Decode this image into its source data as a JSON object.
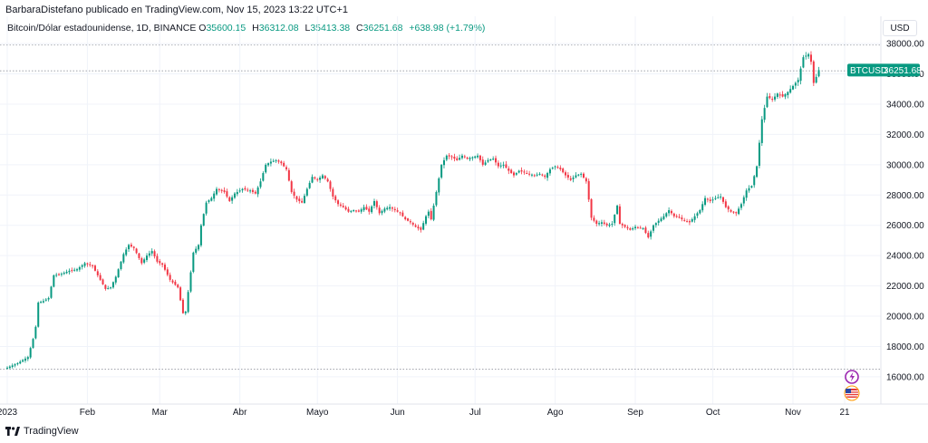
{
  "caption": "BarbaraDistefano publicado en TradingView.com, Nov 15, 2023 13:22 UTC+1",
  "legend": {
    "symbol": "Bitcoin/Dólar estadounidense, 1D, BINANCE",
    "open_label": "O",
    "open": "35600.15",
    "high_label": "H",
    "high": "36312.08",
    "low_label": "L",
    "low": "35413.38",
    "close_label": "C",
    "close": "36251.68",
    "change": "+638.98 (+1.79%)"
  },
  "currency": "USD",
  "price_tag": {
    "label": "BTCUSD",
    "value": "36251.68"
  },
  "footer": {
    "brand": "TradingView"
  },
  "colors": {
    "up": "#089981",
    "down": "#f23645",
    "grid": "#f0f3fa",
    "tag": "#089981"
  },
  "icons": [
    "tradingview-logo-icon",
    "lightning-event-icon",
    "us-flag-event-icon"
  ],
  "chart_data": {
    "type": "candlestick",
    "y_ticks": [
      16000,
      18000,
      20000,
      22000,
      24000,
      26000,
      28000,
      30000,
      32000,
      34000,
      36000,
      38000
    ],
    "y_tick_labels": [
      "16000.00",
      "18000.00",
      "20000.00",
      "22000.00",
      "24000.00",
      "26000.00",
      "28000.00",
      "30000.00",
      "32000.00",
      "34000.00",
      "36000.00",
      "38000.00"
    ],
    "ylim": [
      14200,
      39800
    ],
    "x_tick_labels": [
      "2023",
      "Feb",
      "Mar",
      "Abr",
      "Mayo",
      "Jun",
      "Jul",
      "Ago",
      "Sep",
      "Oct",
      "Nov",
      "21"
    ],
    "x_tick_days": [
      0,
      31,
      59,
      90,
      120,
      151,
      181,
      212,
      243,
      273,
      304,
      324
    ],
    "horizontal_levels": [
      16500,
      37900,
      36200
    ],
    "close_anchors": [
      [
        0,
        16600
      ],
      [
        4,
        16900
      ],
      [
        8,
        17300
      ],
      [
        10,
        18500
      ],
      [
        11,
        19300
      ],
      [
        12,
        20900
      ],
      [
        14,
        21000
      ],
      [
        16,
        21200
      ],
      [
        18,
        22700
      ],
      [
        21,
        22800
      ],
      [
        24,
        23000
      ],
      [
        27,
        23100
      ],
      [
        30,
        23500
      ],
      [
        33,
        23300
      ],
      [
        36,
        22400
      ],
      [
        38,
        21800
      ],
      [
        40,
        21900
      ],
      [
        42,
        22600
      ],
      [
        45,
        24100
      ],
      [
        47,
        24700
      ],
      [
        49,
        24500
      ],
      [
        52,
        23500
      ],
      [
        54,
        24000
      ],
      [
        56,
        24300
      ],
      [
        58,
        23600
      ],
      [
        60,
        23400
      ],
      [
        63,
        22400
      ],
      [
        66,
        21900
      ],
      [
        68,
        20200
      ],
      [
        69,
        20300
      ],
      [
        70,
        21600
      ],
      [
        72,
        24200
      ],
      [
        74,
        24700
      ],
      [
        75,
        26000
      ],
      [
        77,
        27500
      ],
      [
        79,
        27800
      ],
      [
        81,
        28400
      ],
      [
        84,
        28200
      ],
      [
        86,
        27600
      ],
      [
        88,
        28100
      ],
      [
        91,
        28400
      ],
      [
        94,
        28300
      ],
      [
        96,
        28100
      ],
      [
        98,
        28900
      ],
      [
        100,
        30000
      ],
      [
        102,
        30200
      ],
      [
        104,
        30300
      ],
      [
        106,
        30100
      ],
      [
        108,
        29700
      ],
      [
        110,
        28200
      ],
      [
        112,
        27700
      ],
      [
        114,
        27500
      ],
      [
        116,
        28400
      ],
      [
        118,
        29200
      ],
      [
        120,
        29000
      ],
      [
        122,
        29300
      ],
      [
        124,
        28900
      ],
      [
        126,
        27900
      ],
      [
        128,
        27400
      ],
      [
        130,
        27200
      ],
      [
        132,
        26900
      ],
      [
        134,
        27000
      ],
      [
        136,
        26900
      ],
      [
        138,
        27200
      ],
      [
        140,
        26900
      ],
      [
        142,
        27600
      ],
      [
        144,
        26800
      ],
      [
        146,
        27100
      ],
      [
        148,
        27200
      ],
      [
        150,
        27000
      ],
      [
        152,
        26800
      ],
      [
        154,
        26400
      ],
      [
        156,
        26200
      ],
      [
        158,
        25900
      ],
      [
        160,
        25700
      ],
      [
        162,
        26600
      ],
      [
        163,
        26900
      ],
      [
        164,
        26400
      ],
      [
        166,
        28200
      ],
      [
        168,
        30000
      ],
      [
        170,
        30600
      ],
      [
        172,
        30500
      ],
      [
        174,
        30300
      ],
      [
        176,
        30600
      ],
      [
        178,
        30400
      ],
      [
        180,
        30500
      ],
      [
        182,
        30600
      ],
      [
        184,
        30000
      ],
      [
        186,
        30300
      ],
      [
        188,
        30400
      ],
      [
        190,
        29900
      ],
      [
        192,
        30000
      ],
      [
        194,
        29600
      ],
      [
        196,
        29300
      ],
      [
        198,
        29600
      ],
      [
        200,
        29500
      ],
      [
        202,
        29400
      ],
      [
        204,
        29300
      ],
      [
        206,
        29400
      ],
      [
        208,
        29200
      ],
      [
        210,
        29700
      ],
      [
        212,
        29900
      ],
      [
        214,
        29700
      ],
      [
        216,
        29300
      ],
      [
        218,
        29000
      ],
      [
        220,
        29300
      ],
      [
        222,
        29400
      ],
      [
        224,
        28900
      ],
      [
        226,
        26500
      ],
      [
        228,
        26100
      ],
      [
        230,
        26200
      ],
      [
        232,
        26000
      ],
      [
        234,
        26100
      ],
      [
        236,
        27300
      ],
      [
        237,
        26100
      ],
      [
        239,
        25900
      ],
      [
        241,
        25700
      ],
      [
        243,
        25900
      ],
      [
        246,
        25800
      ],
      [
        248,
        25200
      ],
      [
        250,
        26000
      ],
      [
        252,
        26300
      ],
      [
        254,
        26600
      ],
      [
        256,
        27000
      ],
      [
        258,
        26600
      ],
      [
        260,
        26500
      ],
      [
        262,
        26300
      ],
      [
        264,
        26200
      ],
      [
        266,
        26600
      ],
      [
        268,
        27000
      ],
      [
        270,
        27800
      ],
      [
        272,
        27600
      ],
      [
        274,
        27800
      ],
      [
        276,
        27900
      ],
      [
        278,
        27200
      ],
      [
        280,
        26900
      ],
      [
        282,
        26800
      ],
      [
        284,
        27400
      ],
      [
        286,
        28300
      ],
      [
        288,
        28600
      ],
      [
        290,
        29900
      ],
      [
        292,
        33000
      ],
      [
        294,
        34500
      ],
      [
        296,
        34300
      ],
      [
        298,
        34700
      ],
      [
        300,
        34500
      ],
      [
        302,
        34800
      ],
      [
        304,
        35200
      ],
      [
        306,
        35600
      ],
      [
        308,
        37100
      ],
      [
        310,
        37300
      ],
      [
        311,
        36800
      ],
      [
        312,
        35400
      ],
      [
        313,
        35800
      ],
      [
        314,
        36251
      ]
    ]
  }
}
